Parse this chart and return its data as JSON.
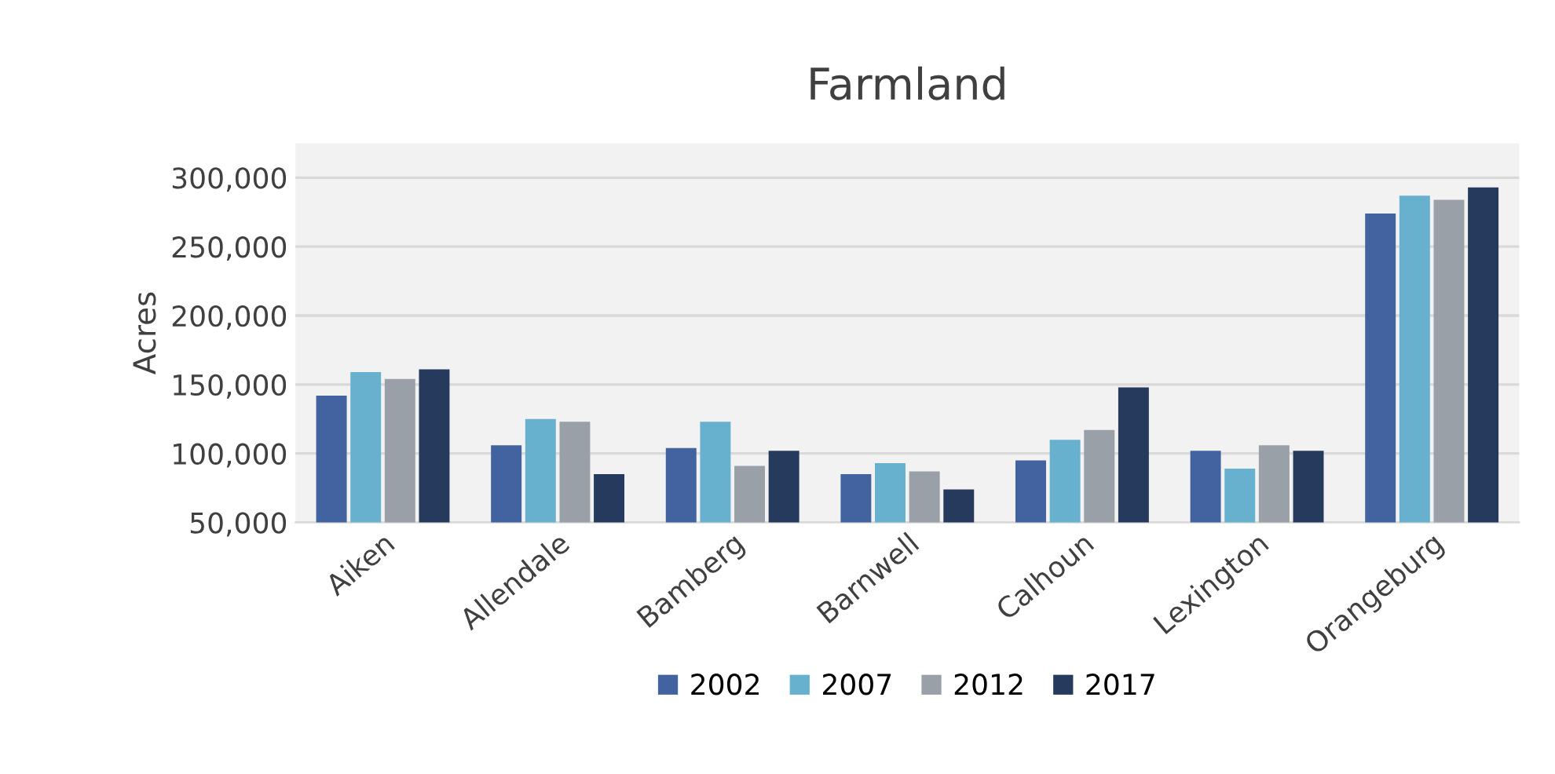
{
  "chart_data": {
    "type": "bar",
    "title": "Farmland",
    "ylabel": "Acres",
    "categories": [
      "Aiken",
      "Allendale",
      "Bamberg",
      "Barnwell",
      "Calhoun",
      "Lexington",
      "Orangeburg"
    ],
    "series": [
      {
        "name": "2002",
        "color": "#4262a0",
        "values": [
          142000,
          106000,
          104000,
          85000,
          95000,
          102000,
          274000
        ]
      },
      {
        "name": "2007",
        "color": "#67b1cf",
        "values": [
          159000,
          125000,
          123000,
          93000,
          110000,
          89000,
          287000
        ]
      },
      {
        "name": "2012",
        "color": "#9aa0a8",
        "values": [
          154000,
          123000,
          91000,
          87000,
          117000,
          106000,
          284000
        ]
      },
      {
        "name": "2017",
        "color": "#263a5e",
        "values": [
          161000,
          85000,
          102000,
          74000,
          148000,
          102000,
          293000
        ]
      }
    ],
    "ylim": [
      50000,
      325000
    ],
    "yticks": [
      {
        "value": 50000,
        "label": "50,000"
      },
      {
        "value": 100000,
        "label": "100,000"
      },
      {
        "value": 150000,
        "label": "150,000"
      },
      {
        "value": 200000,
        "label": "200,000"
      },
      {
        "value": 250000,
        "label": "250,000"
      },
      {
        "value": 300000,
        "label": "300,000"
      }
    ],
    "grid": "y",
    "legend": "bottom"
  }
}
